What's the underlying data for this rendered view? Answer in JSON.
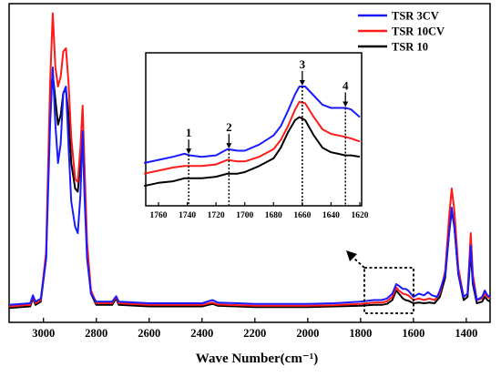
{
  "chart_data": [
    {
      "panel": "main",
      "type": "line",
      "title": "",
      "xlabel": "Wave Number(cm⁻¹)",
      "ylabel": "",
      "xlim": [
        3130,
        1310
      ],
      "x_reversed": true,
      "xticks": [
        3000,
        2800,
        2600,
        2400,
        2200,
        2000,
        1800,
        1600,
        1400
      ],
      "grid": false,
      "legend_position": "top-right",
      "series": [
        {
          "name": "TSR 3CV",
          "color": "#1a1aff",
          "points": [
            [
              3130,
              0.055
            ],
            [
              3050,
              0.06
            ],
            [
              3040,
              0.085
            ],
            [
              3030,
              0.065
            ],
            [
              3010,
              0.075
            ],
            [
              2990,
              0.2
            ],
            [
              2975,
              0.62
            ],
            [
              2965,
              0.8
            ],
            [
              2955,
              0.62
            ],
            [
              2945,
              0.5
            ],
            [
              2935,
              0.56
            ],
            [
              2925,
              0.72
            ],
            [
              2915,
              0.74
            ],
            [
              2905,
              0.55
            ],
            [
              2895,
              0.38
            ],
            [
              2880,
              0.3
            ],
            [
              2870,
              0.28
            ],
            [
              2860,
              0.4
            ],
            [
              2852,
              0.6
            ],
            [
              2845,
              0.4
            ],
            [
              2835,
              0.2
            ],
            [
              2820,
              0.09
            ],
            [
              2800,
              0.065
            ],
            [
              2740,
              0.065
            ],
            [
              2725,
              0.082
            ],
            [
              2715,
              0.065
            ],
            [
              2600,
              0.06
            ],
            [
              2400,
              0.06
            ],
            [
              2360,
              0.07
            ],
            [
              2340,
              0.062
            ],
            [
              2200,
              0.058
            ],
            [
              2000,
              0.058
            ],
            [
              1900,
              0.06
            ],
            [
              1800,
              0.065
            ],
            [
              1750,
              0.07
            ],
            [
              1720,
              0.07
            ],
            [
              1700,
              0.075
            ],
            [
              1680,
              0.09
            ],
            [
              1665,
              0.12
            ],
            [
              1655,
              0.115
            ],
            [
              1640,
              0.105
            ],
            [
              1630,
              0.105
            ],
            [
              1620,
              0.1
            ],
            [
              1600,
              0.08
            ],
            [
              1580,
              0.09
            ],
            [
              1560,
              0.085
            ],
            [
              1545,
              0.095
            ],
            [
              1530,
              0.085
            ],
            [
              1510,
              0.08
            ],
            [
              1500,
              0.1
            ],
            [
              1480,
              0.15
            ],
            [
              1465,
              0.28
            ],
            [
              1455,
              0.36
            ],
            [
              1445,
              0.3
            ],
            [
              1430,
              0.15
            ],
            [
              1410,
              0.08
            ],
            [
              1395,
              0.09
            ],
            [
              1383,
              0.24
            ],
            [
              1375,
              0.13
            ],
            [
              1360,
              0.07
            ],
            [
              1340,
              0.08
            ],
            [
              1330,
              0.1
            ],
            [
              1320,
              0.085
            ],
            [
              1310,
              0.08
            ]
          ]
        },
        {
          "name": "TSR 10CV",
          "color": "#ff1a1a",
          "points": [
            [
              3130,
              0.05
            ],
            [
              3050,
              0.055
            ],
            [
              3040,
              0.08
            ],
            [
              3030,
              0.06
            ],
            [
              3010,
              0.07
            ],
            [
              2990,
              0.22
            ],
            [
              2975,
              0.75
            ],
            [
              2965,
              0.97
            ],
            [
              2955,
              0.8
            ],
            [
              2945,
              0.74
            ],
            [
              2935,
              0.77
            ],
            [
              2925,
              0.85
            ],
            [
              2915,
              0.86
            ],
            [
              2905,
              0.75
            ],
            [
              2895,
              0.58
            ],
            [
              2880,
              0.45
            ],
            [
              2870,
              0.44
            ],
            [
              2860,
              0.55
            ],
            [
              2852,
              0.68
            ],
            [
              2845,
              0.5
            ],
            [
              2835,
              0.25
            ],
            [
              2820,
              0.1
            ],
            [
              2800,
              0.06
            ],
            [
              2740,
              0.06
            ],
            [
              2725,
              0.08
            ],
            [
              2715,
              0.06
            ],
            [
              2600,
              0.055
            ],
            [
              2400,
              0.055
            ],
            [
              2360,
              0.062
            ],
            [
              2340,
              0.056
            ],
            [
              2200,
              0.052
            ],
            [
              2000,
              0.052
            ],
            [
              1900,
              0.054
            ],
            [
              1800,
              0.058
            ],
            [
              1750,
              0.062
            ],
            [
              1720,
              0.062
            ],
            [
              1700,
              0.066
            ],
            [
              1680,
              0.08
            ],
            [
              1665,
              0.11
            ],
            [
              1655,
              0.1
            ],
            [
              1640,
              0.09
            ],
            [
              1630,
              0.088
            ],
            [
              1620,
              0.085
            ],
            [
              1600,
              0.07
            ],
            [
              1580,
              0.075
            ],
            [
              1560,
              0.07
            ],
            [
              1540,
              0.075
            ],
            [
              1520,
              0.07
            ],
            [
              1500,
              0.09
            ],
            [
              1480,
              0.16
            ],
            [
              1465,
              0.33
            ],
            [
              1455,
              0.42
            ],
            [
              1445,
              0.35
            ],
            [
              1430,
              0.17
            ],
            [
              1410,
              0.08
            ],
            [
              1395,
              0.09
            ],
            [
              1383,
              0.28
            ],
            [
              1375,
              0.15
            ],
            [
              1360,
              0.07
            ],
            [
              1340,
              0.075
            ],
            [
              1330,
              0.09
            ],
            [
              1320,
              0.08
            ],
            [
              1310,
              0.075
            ]
          ]
        },
        {
          "name": "TSR 10",
          "color": "#000000",
          "points": [
            [
              3130,
              0.045
            ],
            [
              3050,
              0.05
            ],
            [
              3040,
              0.075
            ],
            [
              3030,
              0.055
            ],
            [
              3010,
              0.065
            ],
            [
              2990,
              0.2
            ],
            [
              2975,
              0.7
            ],
            [
              2965,
              0.78
            ],
            [
              2955,
              0.7
            ],
            [
              2945,
              0.62
            ],
            [
              2935,
              0.65
            ],
            [
              2925,
              0.72
            ],
            [
              2915,
              0.73
            ],
            [
              2905,
              0.65
            ],
            [
              2895,
              0.5
            ],
            [
              2880,
              0.42
            ],
            [
              2870,
              0.41
            ],
            [
              2860,
              0.5
            ],
            [
              2852,
              0.6
            ],
            [
              2845,
              0.45
            ],
            [
              2835,
              0.22
            ],
            [
              2820,
              0.09
            ],
            [
              2800,
              0.055
            ],
            [
              2740,
              0.055
            ],
            [
              2725,
              0.075
            ],
            [
              2715,
              0.055
            ],
            [
              2600,
              0.05
            ],
            [
              2400,
              0.05
            ],
            [
              2360,
              0.058
            ],
            [
              2340,
              0.052
            ],
            [
              2200,
              0.048
            ],
            [
              2000,
              0.048
            ],
            [
              1900,
              0.05
            ],
            [
              1800,
              0.052
            ],
            [
              1750,
              0.055
            ],
            [
              1720,
              0.055
            ],
            [
              1700,
              0.058
            ],
            [
              1680,
              0.07
            ],
            [
              1665,
              0.1
            ],
            [
              1655,
              0.09
            ],
            [
              1640,
              0.075
            ],
            [
              1630,
              0.07
            ],
            [
              1620,
              0.068
            ],
            [
              1600,
              0.06
            ],
            [
              1580,
              0.062
            ],
            [
              1560,
              0.06
            ],
            [
              1540,
              0.062
            ],
            [
              1520,
              0.06
            ],
            [
              1500,
              0.08
            ],
            [
              1480,
              0.14
            ],
            [
              1465,
              0.28
            ],
            [
              1455,
              0.35
            ],
            [
              1445,
              0.3
            ],
            [
              1430,
              0.15
            ],
            [
              1410,
              0.07
            ],
            [
              1395,
              0.08
            ],
            [
              1383,
              0.22
            ],
            [
              1375,
              0.12
            ],
            [
              1360,
              0.06
            ],
            [
              1340,
              0.065
            ],
            [
              1330,
              0.08
            ],
            [
              1320,
              0.07
            ],
            [
              1310,
              0.065
            ]
          ]
        }
      ]
    },
    {
      "panel": "inset",
      "type": "line",
      "title": "",
      "xlabel": "",
      "ylabel": "",
      "xlim": [
        1770,
        1620
      ],
      "x_reversed": true,
      "xticks": [
        1760,
        1740,
        1720,
        1700,
        1680,
        1660,
        1640,
        1620
      ],
      "grid": false,
      "peak_markers": [
        {
          "label": "1",
          "x": 1739
        },
        {
          "label": "2",
          "x": 1711
        },
        {
          "label": "3",
          "x": 1660
        },
        {
          "label": "4",
          "x": 1630
        }
      ],
      "series": [
        {
          "name": "TSR 3CV",
          "color": "#1a1aff",
          "points": [
            [
              1770,
              0.28
            ],
            [
              1760,
              0.3
            ],
            [
              1750,
              0.32
            ],
            [
              1742,
              0.34
            ],
            [
              1738,
              0.33
            ],
            [
              1730,
              0.32
            ],
            [
              1720,
              0.33
            ],
            [
              1712,
              0.37
            ],
            [
              1705,
              0.36
            ],
            [
              1700,
              0.36
            ],
            [
              1690,
              0.4
            ],
            [
              1680,
              0.46
            ],
            [
              1675,
              0.52
            ],
            [
              1670,
              0.62
            ],
            [
              1665,
              0.73
            ],
            [
              1662,
              0.78
            ],
            [
              1658,
              0.78
            ],
            [
              1652,
              0.72
            ],
            [
              1646,
              0.66
            ],
            [
              1640,
              0.64
            ],
            [
              1635,
              0.64
            ],
            [
              1630,
              0.64
            ],
            [
              1626,
              0.63
            ],
            [
              1620,
              0.58
            ]
          ]
        },
        {
          "name": "TSR 10CV",
          "color": "#ff1a1a",
          "points": [
            [
              1770,
              0.21
            ],
            [
              1760,
              0.23
            ],
            [
              1750,
              0.25
            ],
            [
              1742,
              0.26
            ],
            [
              1738,
              0.26
            ],
            [
              1730,
              0.26
            ],
            [
              1720,
              0.27
            ],
            [
              1712,
              0.3
            ],
            [
              1705,
              0.29
            ],
            [
              1700,
              0.29
            ],
            [
              1690,
              0.32
            ],
            [
              1680,
              0.37
            ],
            [
              1675,
              0.43
            ],
            [
              1670,
              0.52
            ],
            [
              1665,
              0.63
            ],
            [
              1662,
              0.68
            ],
            [
              1658,
              0.67
            ],
            [
              1652,
              0.58
            ],
            [
              1646,
              0.5
            ],
            [
              1640,
              0.47
            ],
            [
              1635,
              0.46
            ],
            [
              1630,
              0.45
            ],
            [
              1626,
              0.44
            ],
            [
              1620,
              0.42
            ]
          ]
        },
        {
          "name": "TSR 10",
          "color": "#000000",
          "points": [
            [
              1770,
              0.13
            ],
            [
              1760,
              0.15
            ],
            [
              1750,
              0.16
            ],
            [
              1742,
              0.18
            ],
            [
              1738,
              0.18
            ],
            [
              1730,
              0.18
            ],
            [
              1720,
              0.19
            ],
            [
              1712,
              0.21
            ],
            [
              1705,
              0.21
            ],
            [
              1700,
              0.22
            ],
            [
              1690,
              0.26
            ],
            [
              1680,
              0.31
            ],
            [
              1675,
              0.38
            ],
            [
              1670,
              0.48
            ],
            [
              1665,
              0.56
            ],
            [
              1662,
              0.58
            ],
            [
              1658,
              0.56
            ],
            [
              1652,
              0.46
            ],
            [
              1646,
              0.38
            ],
            [
              1640,
              0.35
            ],
            [
              1635,
              0.34
            ],
            [
              1630,
              0.33
            ],
            [
              1626,
              0.33
            ],
            [
              1620,
              0.32
            ]
          ]
        }
      ]
    }
  ]
}
